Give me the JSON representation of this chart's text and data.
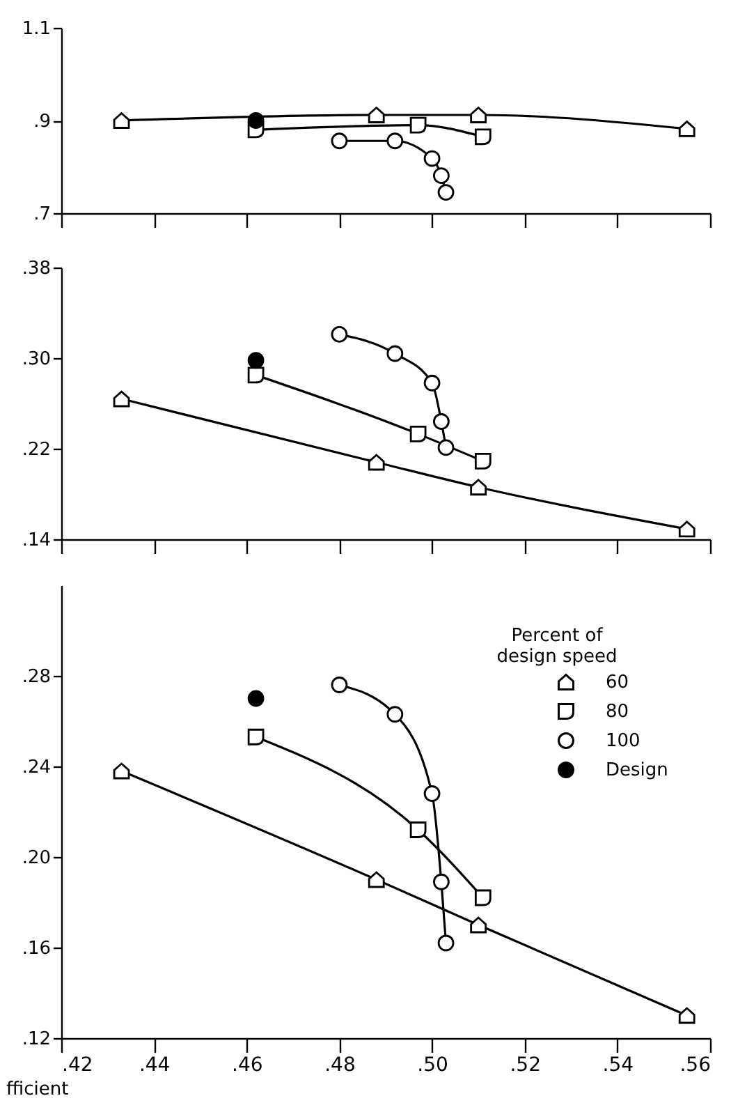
{
  "chart_data": [
    {
      "type": "line",
      "xlim": [
        0.42,
        0.56
      ],
      "xticks": [
        0.42,
        0.44,
        0.46,
        0.48,
        0.5,
        0.52,
        0.54,
        0.56
      ],
      "ylim": [
        0.7,
        1.1
      ],
      "yticks": [
        {
          "value": 0.7,
          "label": ".7"
        },
        {
          "value": 0.9,
          "label": ".9"
        },
        1.1
      ],
      "tick_labels": "y",
      "grid": false,
      "legend": false,
      "series": [
        {
          "color": "#000000",
          "marker": "triangle",
          "x": [
            0.433,
            0.488,
            0.51,
            0.555
          ],
          "values": [
            0.9,
            0.912,
            0.912,
            0.882
          ]
        },
        {
          "color": "#000000",
          "marker": "square",
          "x": [
            0.462,
            0.497,
            0.511
          ],
          "values": [
            0.88,
            0.89,
            0.865
          ]
        },
        {
          "color": "#000000",
          "marker": "circle",
          "x": [
            0.48,
            0.492,
            0.5,
            0.502,
            0.503
          ],
          "values": [
            0.856,
            0.856,
            0.818,
            0.781,
            0.745
          ]
        },
        {
          "type": "scatter",
          "color": "#000000",
          "marker": "circle",
          "x": [
            0.462
          ],
          "values": [
            0.9
          ]
        }
      ]
    },
    {
      "type": "line",
      "xlim": [
        0.42,
        0.56
      ],
      "xticks": [
        0.42,
        0.44,
        0.46,
        0.48,
        0.5,
        0.52,
        0.54,
        0.56
      ],
      "ylim": [
        0.14,
        0.38
      ],
      "yticks": [
        {
          "value": 0.14,
          "label": ".14"
        },
        {
          "value": 0.22,
          "label": ".22"
        },
        {
          "value": 0.3,
          "label": ".30"
        },
        {
          "value": 0.38,
          "label": ".38"
        }
      ],
      "tick_labels": "y",
      "grid": false,
      "legend": false,
      "series": [
        {
          "color": "#000000",
          "marker": "triangle",
          "x": [
            0.433,
            0.488,
            0.51,
            0.555
          ],
          "values": [
            0.264,
            0.208,
            0.186,
            0.149
          ]
        },
        {
          "color": "#000000",
          "marker": "square",
          "x": [
            0.462,
            0.497,
            0.511
          ],
          "values": [
            0.285,
            0.233,
            0.209
          ]
        },
        {
          "color": "#000000",
          "marker": "circle",
          "x": [
            0.48,
            0.492,
            0.5,
            0.502,
            0.503
          ],
          "values": [
            0.321,
            0.304,
            0.278,
            0.244,
            0.221
          ]
        },
        {
          "type": "scatter",
          "color": "#000000",
          "marker": "circle",
          "x": [
            0.462
          ],
          "values": [
            0.298
          ]
        }
      ]
    },
    {
      "type": "line",
      "xlim": [
        0.42,
        0.56
      ],
      "xticks": [
        {
          "value": 0.42,
          "label": ".42"
        },
        {
          "value": 0.44,
          "label": ".44"
        },
        {
          "value": 0.46,
          "label": ".46"
        },
        {
          "value": 0.48,
          "label": ".48"
        },
        {
          "value": 0.5,
          "label": ".50"
        },
        {
          "value": 0.52,
          "label": ".52"
        },
        {
          "value": 0.54,
          "label": ".54"
        },
        {
          "value": 0.56,
          "label": ".56"
        }
      ],
      "ylim": [
        0.12,
        0.32
      ],
      "yticks": [
        {
          "value": 0.12,
          "label": ".12"
        },
        {
          "value": 0.16,
          "label": ".16"
        },
        {
          "value": 0.2,
          "label": ".20"
        },
        {
          "value": 0.24,
          "label": ".24"
        },
        {
          "value": 0.28,
          "label": ".28"
        }
      ],
      "xlabel": "fficient",
      "grid": false,
      "legend": "top right",
      "legend_title": "Percent of design speed",
      "series": [
        {
          "name": "60",
          "color": "#000000",
          "marker": "triangle",
          "x": [
            0.433,
            0.488,
            0.51,
            0.555
          ],
          "values": [
            0.238,
            0.19,
            0.17,
            0.13
          ]
        },
        {
          "name": "80",
          "color": "#000000",
          "marker": "square",
          "x": [
            0.462,
            0.497,
            0.511
          ],
          "values": [
            0.253,
            0.212,
            0.182
          ]
        },
        {
          "name": "100",
          "color": "#000000",
          "marker": "circle",
          "x": [
            0.48,
            0.492,
            0.5,
            0.502,
            0.503
          ],
          "values": [
            0.276,
            0.263,
            0.228,
            0.189,
            0.162
          ]
        },
        {
          "name": "Design",
          "type": "scatter",
          "color": "#000000",
          "marker": "circle",
          "x": [
            0.462
          ],
          "values": [
            0.27
          ]
        }
      ]
    }
  ]
}
